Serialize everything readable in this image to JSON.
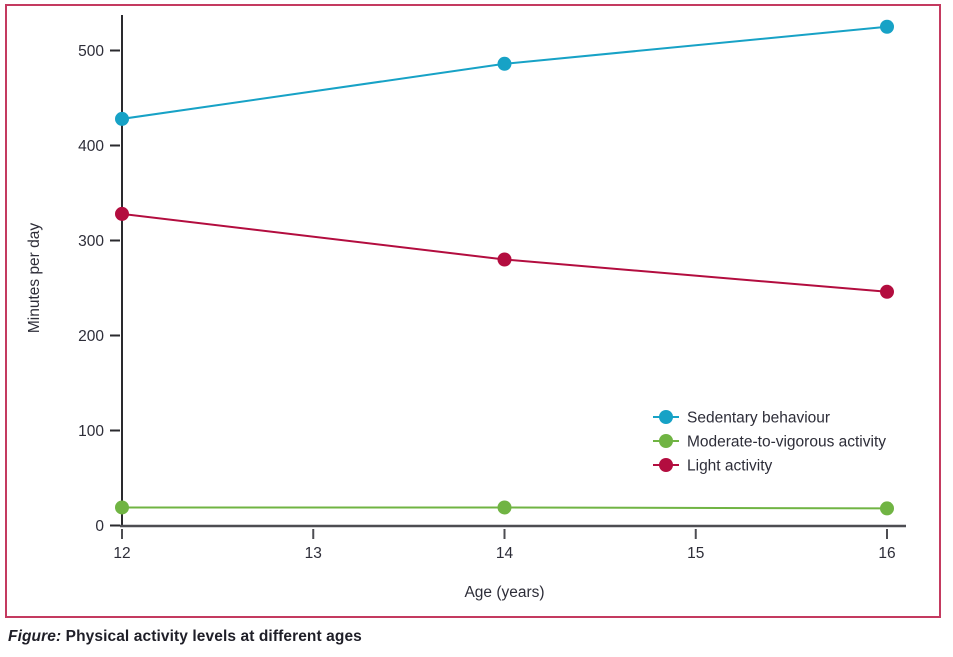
{
  "figure": {
    "caption_label": "Figure:",
    "caption_text": " Physical activity levels at different ages",
    "border_color": "#c43a60"
  },
  "chart_data": {
    "type": "line",
    "x": [
      12,
      14,
      16
    ],
    "xtick_values": [
      12,
      13,
      14,
      15,
      16
    ],
    "ytick_values": [
      0,
      100,
      200,
      300,
      400,
      500
    ],
    "xlabel": "Age (years)",
    "ylabel": "Minutes per day",
    "xlim": [
      12,
      16
    ],
    "ylim": [
      0,
      538
    ],
    "grid": false,
    "legend_position": "inside-right-lower",
    "series": [
      {
        "name": "Sedentary behaviour",
        "color": "#17a2c6",
        "values": [
          428,
          486,
          525
        ]
      },
      {
        "name": "Moderate-to-vigorous activity",
        "color": "#70b443",
        "values": [
          19,
          19,
          18
        ]
      },
      {
        "name": "Light activity",
        "color": "#b30d3f",
        "values": [
          328,
          280,
          246
        ]
      }
    ],
    "axis_colors": {
      "y_axis": "#2a2a2e",
      "x_axis": "#4d4d52",
      "text": "#2d2d38"
    }
  }
}
